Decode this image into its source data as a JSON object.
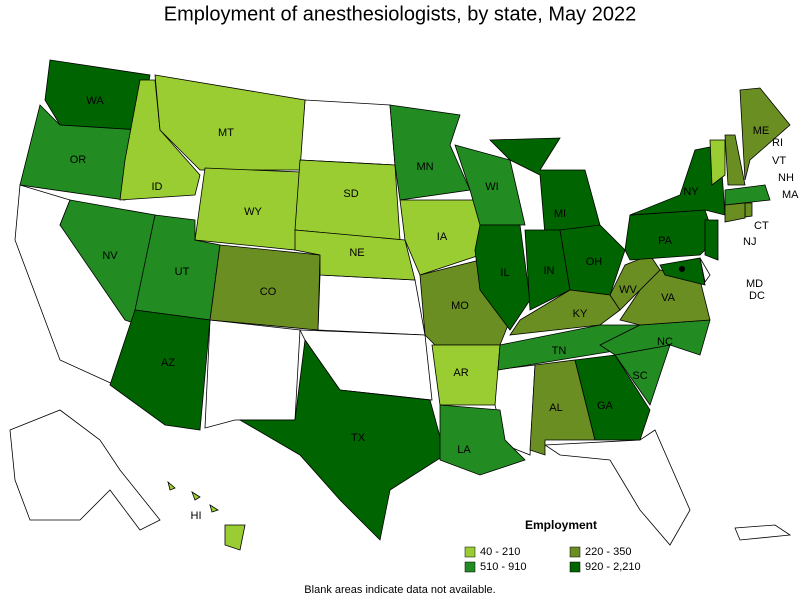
{
  "title": "Employment of anesthesiologists, by state, May 2022",
  "states": [
    {
      "abbr": "WA",
      "color": "#006400"
    },
    {
      "abbr": "OR",
      "color": "#228b22"
    },
    {
      "abbr": "NV",
      "color": "#228b22"
    },
    {
      "abbr": "ID",
      "color": "#9acd32"
    },
    {
      "abbr": "MT",
      "color": "#9acd32"
    },
    {
      "abbr": "WY",
      "color": "#9acd32"
    },
    {
      "abbr": "UT",
      "color": "#228b22"
    },
    {
      "abbr": "AZ",
      "color": "#006400"
    },
    {
      "abbr": "CO",
      "color": "#6b8e23"
    },
    {
      "abbr": "SD",
      "color": "#9acd32"
    },
    {
      "abbr": "NE",
      "color": "#9acd32"
    },
    {
      "abbr": "TX",
      "color": "#006400"
    },
    {
      "abbr": "MN",
      "color": "#228b22"
    },
    {
      "abbr": "IA",
      "color": "#9acd32"
    },
    {
      "abbr": "MO",
      "color": "#6b8e23"
    },
    {
      "abbr": "AR",
      "color": "#9acd32"
    },
    {
      "abbr": "LA",
      "color": "#228b22"
    },
    {
      "abbr": "WI",
      "color": "#228b22"
    },
    {
      "abbr": "IL",
      "color": "#006400"
    },
    {
      "abbr": "MI",
      "color": "#006400"
    },
    {
      "abbr": "IN",
      "color": "#006400"
    },
    {
      "abbr": "OH",
      "color": "#006400"
    },
    {
      "abbr": "KY",
      "color": "#6b8e23"
    },
    {
      "abbr": "TN",
      "color": "#228b22"
    },
    {
      "abbr": "AL",
      "color": "#6b8e23"
    },
    {
      "abbr": "GA",
      "color": "#006400"
    },
    {
      "abbr": "SC",
      "color": "#228b22"
    },
    {
      "abbr": "NC",
      "color": "#228b22"
    },
    {
      "abbr": "VA",
      "color": "#6b8e23"
    },
    {
      "abbr": "WV",
      "color": "#6b8e23"
    },
    {
      "abbr": "PA",
      "color": "#006400"
    },
    {
      "abbr": "NY",
      "color": "#006400"
    },
    {
      "abbr": "VT",
      "color": "#9acd32"
    },
    {
      "abbr": "NH",
      "color": "#6b8e23"
    },
    {
      "abbr": "ME",
      "color": "#6b8e23"
    },
    {
      "abbr": "RI",
      "color": "#6b8e23"
    },
    {
      "abbr": "MA",
      "color": "#228b22"
    },
    {
      "abbr": "CT",
      "color": "#6b8e23"
    },
    {
      "abbr": "NJ",
      "color": "#006400"
    },
    {
      "abbr": "MD",
      "color": "#006400"
    },
    {
      "abbr": "DC",
      "color": "#000000"
    },
    {
      "abbr": "HI",
      "color": "#9acd32"
    }
  ],
  "legend": {
    "title": "Employment",
    "items": [
      {
        "label": "40 - 210",
        "color": "#9acd32"
      },
      {
        "label": "220 - 350",
        "color": "#6b8e23"
      },
      {
        "label": "510 - 910",
        "color": "#228b22"
      },
      {
        "label": "920 - 2,210",
        "color": "#006400"
      }
    ]
  },
  "note": "Blank areas indicate data not available."
}
